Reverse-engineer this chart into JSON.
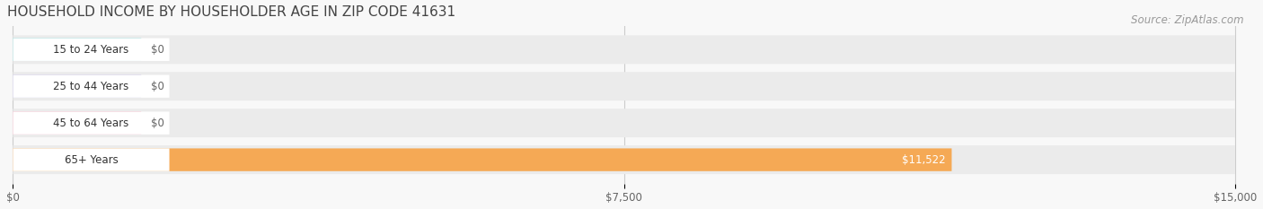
{
  "title": "HOUSEHOLD INCOME BY HOUSEHOLDER AGE IN ZIP CODE 41631",
  "source": "Source: ZipAtlas.com",
  "categories": [
    "15 to 24 Years",
    "25 to 44 Years",
    "45 to 64 Years",
    "65+ Years"
  ],
  "values": [
    0,
    0,
    0,
    11522
  ],
  "bar_colors": [
    "#5ec8c8",
    "#a89fd8",
    "#f597b0",
    "#f5a955"
  ],
  "bar_bg_color": "#ebebeb",
  "xlim": [
    0,
    15000
  ],
  "xticks": [
    0,
    7500,
    15000
  ],
  "xtick_labels": [
    "$0",
    "$7,500",
    "$15,000"
  ],
  "value_label_color": "#666666",
  "value_label_inside_color": "#ffffff",
  "title_color": "#444444",
  "title_fontsize": 11,
  "source_fontsize": 8.5,
  "figsize": [
    14.06,
    2.33
  ],
  "dpi": 100,
  "bg_color": "#f8f8f8"
}
